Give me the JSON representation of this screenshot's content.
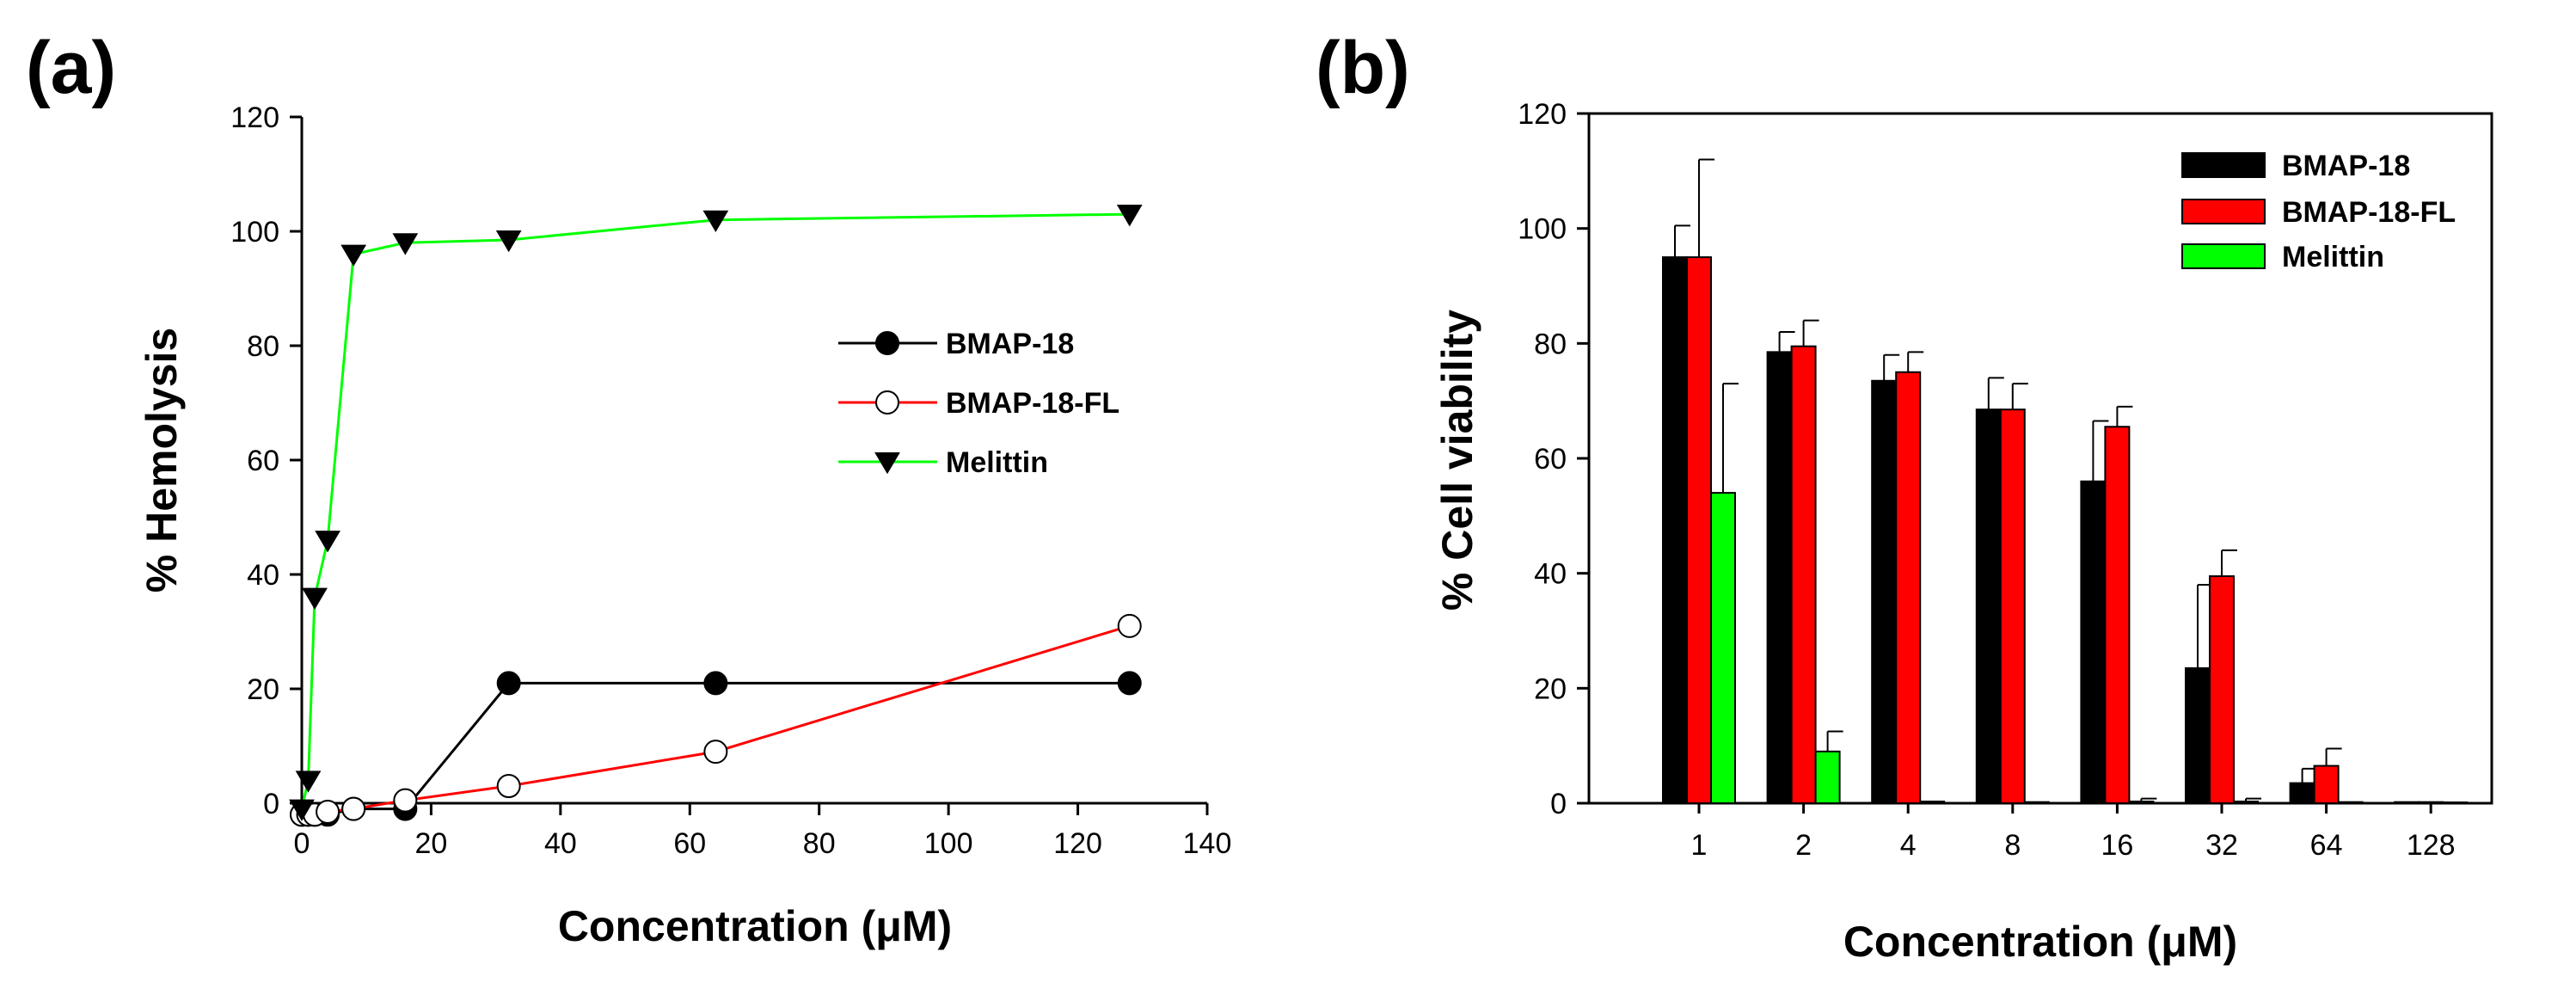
{
  "chart_data": [
    {
      "type": "line",
      "panel_label": "(a)",
      "xlabel": "Concentration (μM)",
      "ylabel": "% Hemolysis",
      "xlim": [
        0,
        140
      ],
      "ylim": [
        0,
        120
      ],
      "xticks": [
        "0",
        "20",
        "40",
        "60",
        "80",
        "100",
        "120",
        "140"
      ],
      "yticks": [
        "0",
        "20",
        "40",
        "60",
        "80",
        "100",
        "120"
      ],
      "legend_position": "right",
      "series": [
        {
          "name": "BMAP-18",
          "color": "#000000",
          "marker": "filled-circle",
          "x": [
            0,
            1,
            2,
            4,
            8,
            16,
            32,
            64,
            128
          ],
          "y": [
            -2,
            -2,
            -2,
            -2,
            -1,
            -1,
            21,
            21,
            21
          ]
        },
        {
          "name": "BMAP-18-FL",
          "color": "#ff0000",
          "marker": "open-circle",
          "x": [
            0,
            1,
            2,
            4,
            8,
            16,
            32,
            64,
            128
          ],
          "y": [
            -2,
            -2,
            -2,
            -1.5,
            -1,
            0.5,
            3,
            9,
            31
          ]
        },
        {
          "name": "Melittin",
          "color": "#00ff00",
          "marker": "filled-triangle-down",
          "x": [
            0,
            1,
            2,
            4,
            8,
            16,
            32,
            64,
            128
          ],
          "y": [
            -1,
            4,
            36,
            46,
            96,
            98,
            98.5,
            102,
            103
          ]
        }
      ]
    },
    {
      "type": "bar",
      "panel_label": "(b)",
      "xlabel": "Concentration (μM)",
      "ylabel": "% Cell viability",
      "ylim": [
        0,
        120
      ],
      "yticks": [
        "0",
        "20",
        "40",
        "60",
        "80",
        "100",
        "120"
      ],
      "categories": [
        "1",
        "2",
        "4",
        "8",
        "16",
        "32",
        "64",
        "128"
      ],
      "legend_position": "top-right",
      "series": [
        {
          "name": "BMAP-18",
          "color": "#000000",
          "values": [
            95,
            78.5,
            73.5,
            68.5,
            56,
            23.5,
            3.5,
            0.2
          ],
          "errors": [
            5.5,
            3.5,
            4.5,
            5.5,
            10.5,
            14.5,
            2.5,
            0.3
          ]
        },
        {
          "name": "BMAP-18-FL",
          "color": "#ff0000",
          "values": [
            95,
            79.5,
            75,
            68.5,
            65.5,
            39.5,
            6.5,
            0.2
          ],
          "errors": [
            17,
            4.5,
            3.5,
            4.5,
            3.5,
            4.5,
            3,
            0.3
          ]
        },
        {
          "name": "Melittin",
          "color": "#00ff00",
          "values": [
            54,
            9,
            0.3,
            0.2,
            0.3,
            0.3,
            0.2,
            0.1
          ],
          "errors": [
            19,
            3.5,
            0.1,
            0.1,
            0.5,
            0.5,
            0.1,
            0.1
          ]
        }
      ]
    }
  ]
}
